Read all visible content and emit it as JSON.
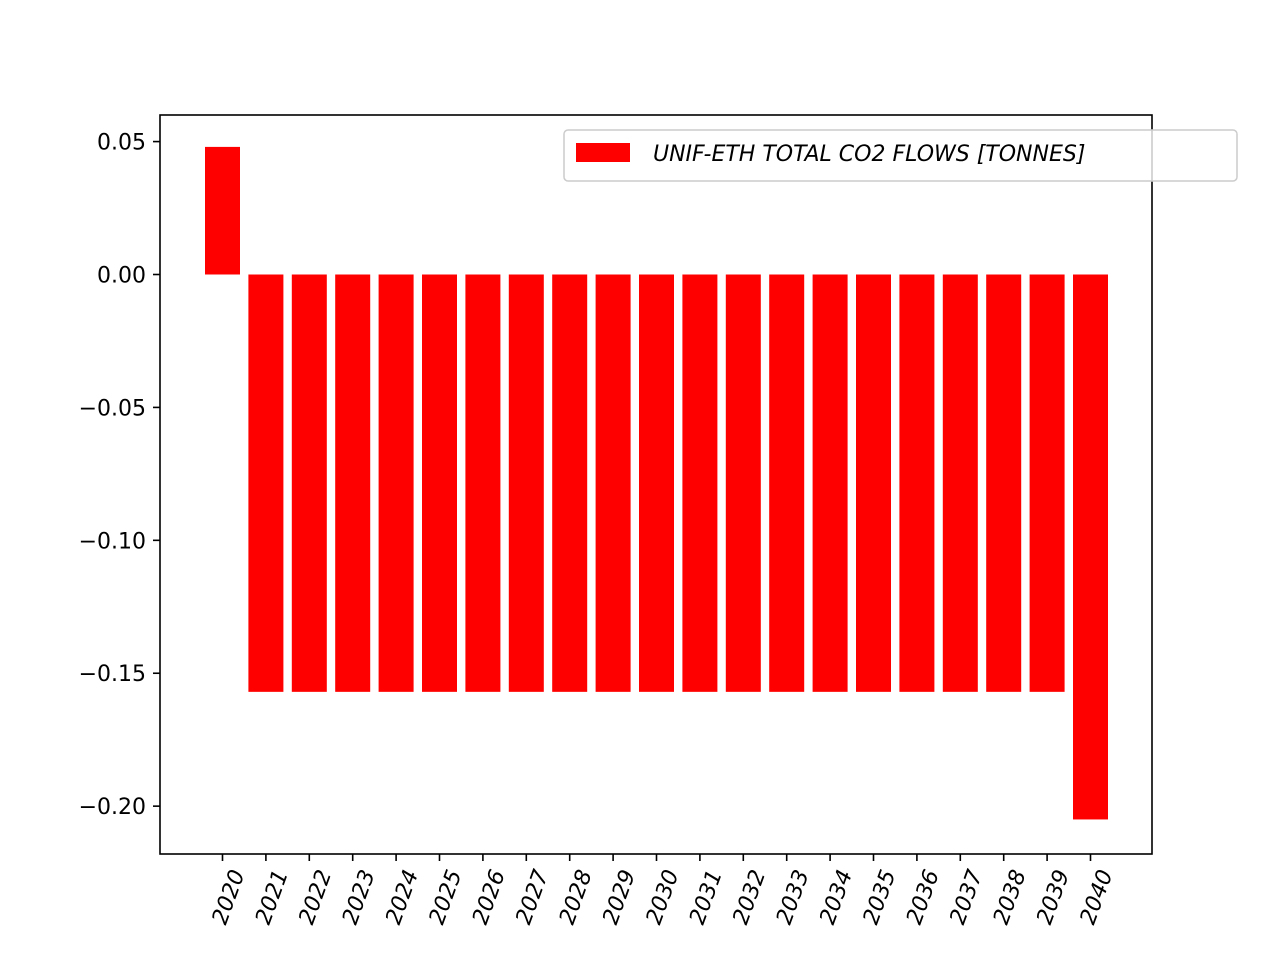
{
  "chart_data": {
    "type": "bar",
    "title": "",
    "xlabel": "",
    "ylabel": "",
    "categories": [
      "2020",
      "2021",
      "2022",
      "2023",
      "2024",
      "2025",
      "2026",
      "2027",
      "2028",
      "2029",
      "2030",
      "2031",
      "2032",
      "2033",
      "2034",
      "2035",
      "2036",
      "2037",
      "2038",
      "2039",
      "2040"
    ],
    "series": [
      {
        "name": "UNIF-ETH TOTAL CO2 FLOWS [TONNES]",
        "color": "#ff0000",
        "values": [
          0.048,
          -0.157,
          -0.157,
          -0.157,
          -0.157,
          -0.157,
          -0.157,
          -0.157,
          -0.157,
          -0.157,
          -0.157,
          -0.157,
          -0.157,
          -0.157,
          -0.157,
          -0.157,
          -0.157,
          -0.157,
          -0.157,
          -0.157,
          -0.205
        ]
      }
    ],
    "ylim": [
      -0.218,
      0.06
    ],
    "yticks": [
      0.05,
      0.0,
      -0.05,
      -0.1,
      -0.15,
      -0.2
    ],
    "ytick_labels": [
      "0.05",
      "0.00",
      "−0.05",
      "−0.10",
      "−0.15",
      "−0.20"
    ],
    "xtick_rotation": "70 degrees",
    "grid": false,
    "legend": {
      "position": "top-right"
    }
  }
}
